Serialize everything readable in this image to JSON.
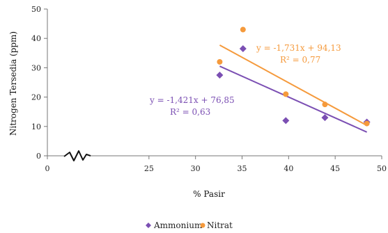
{
  "chart_data": {
    "type": "scatter",
    "xlabel": "% Pasir",
    "ylabel": "Nitrogen Tersedia (ppm)",
    "xlim": [
      20,
      50
    ],
    "ylim": [
      0,
      50
    ],
    "x_ticks": [
      "0",
      "25",
      "30",
      "35",
      "40",
      "45",
      "50"
    ],
    "y_ticks": [
      "0",
      "10",
      "20",
      "30",
      "40",
      "50"
    ],
    "axis_break": true,
    "grid": false,
    "legend": "bottom",
    "series": [
      {
        "name": "Ammonium",
        "color": "#7b4fb3",
        "marker": "diamond",
        "points": [
          {
            "x": 32.6,
            "y": 27.5
          },
          {
            "x": 35.1,
            "y": 36.5
          },
          {
            "x": 39.7,
            "y": 12.0
          },
          {
            "x": 43.9,
            "y": 13.0
          },
          {
            "x": 48.4,
            "y": 11.5
          }
        ],
        "trendline": {
          "slope": -1.421,
          "intercept": 76.85,
          "x_range": [
            32.6,
            48.4
          ]
        },
        "equation": "y = -1,421x + 76,85",
        "r2": "R² = 0,63"
      },
      {
        "name": "Nitrat",
        "color": "#f59a3c",
        "marker": "circle",
        "points": [
          {
            "x": 32.6,
            "y": 32.0
          },
          {
            "x": 35.1,
            "y": 43.0
          },
          {
            "x": 39.7,
            "y": 21.0
          },
          {
            "x": 43.9,
            "y": 17.5
          },
          {
            "x": 48.4,
            "y": 11.0
          }
        ],
        "trendline": {
          "slope": -1.731,
          "intercept": 94.13,
          "x_range": [
            32.6,
            48.4
          ]
        },
        "equation": "y = -1,731x + 94,13",
        "r2": "R² = 0,77"
      }
    ]
  }
}
